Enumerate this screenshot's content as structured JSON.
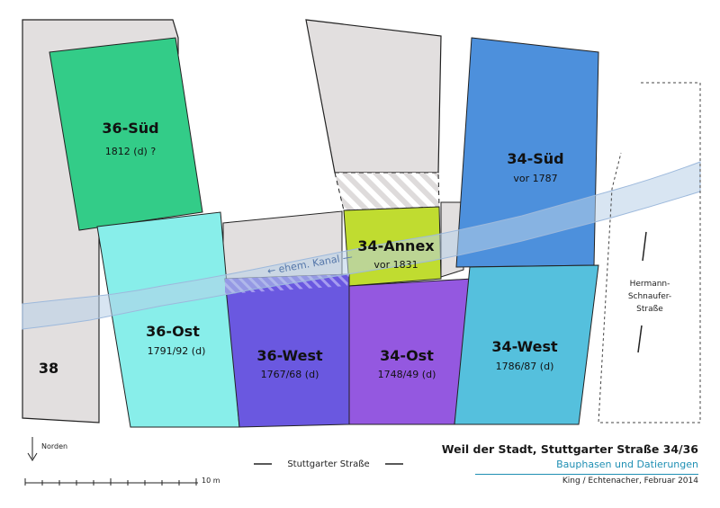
{
  "buildings": [
    {
      "name": "36-Süd",
      "date": "1812 (d) ?",
      "color": "#33cc88"
    },
    {
      "name": "36-Ost",
      "date": "1791/92 (d)",
      "color": "#88eeea"
    },
    {
      "name": "36-West",
      "date": "1767/68 (d)",
      "color": "#6a58e0"
    },
    {
      "name": "34-Ost",
      "date": "1748/49 (d)",
      "color": "#9458e0"
    },
    {
      "name": "34-West",
      "date": "1786/87 (d)",
      "color": "#55c0dd"
    },
    {
      "name": "34-Süd",
      "date": "vor 1787",
      "color": "#4d90dc"
    },
    {
      "name": "34-Annex",
      "date": "vor 1831",
      "color": "#c0dc30"
    }
  ],
  "neighbor_label": "38",
  "canal_label": "← ehem. Kanal —",
  "streets": {
    "hermann": [
      "Hermann-",
      "Schnaufer-",
      "Straße"
    ],
    "stuttgarter": "Stuttgarter Straße"
  },
  "north_label": "Norden",
  "scale_label": "10 m",
  "title": {
    "main": "Weil der Stadt, Stuttgarter Straße 34/36",
    "sub": "Bauphasen und Datierungen",
    "credit": "King / Echtenacher, Februar 2014"
  },
  "colors": {
    "existing": "#e2dfdf",
    "canal": "#b8cfe8",
    "accent": "#1f8fb3"
  }
}
